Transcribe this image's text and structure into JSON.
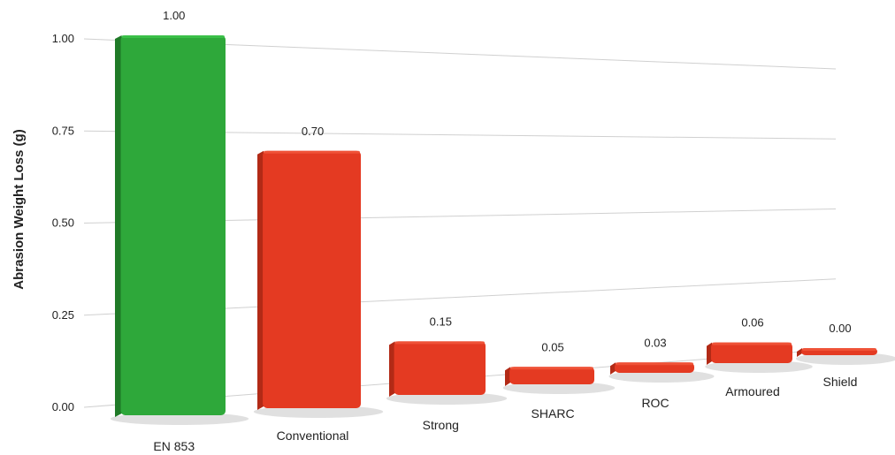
{
  "chart_data": {
    "type": "bar",
    "title": "",
    "xlabel": "",
    "ylabel": "Abrasion Weight Loss (g)",
    "ylim": [
      0,
      1
    ],
    "yticks": [
      "0.00",
      "0.25",
      "0.50",
      "0.75",
      "1.00"
    ],
    "grid": true,
    "categories": [
      "EN 853",
      "Conventional",
      "Strong",
      "SHARC",
      "ROC",
      "Armoured",
      "Shield"
    ],
    "values": [
      1.0,
      0.7,
      0.15,
      0.05,
      0.03,
      0.06,
      0.0
    ],
    "value_labels": [
      "1.00",
      "0.70",
      "0.15",
      "0.05",
      "0.03",
      "0.06",
      "0.00"
    ],
    "colors": {
      "highlight": "#2ea83a",
      "highlight_side": "#1f7a27",
      "highlight_top": "#3cc24a",
      "default": "#e43a22",
      "default_side": "#b22a16",
      "default_top": "#f0553a",
      "grid": "#d0d0d0"
    },
    "highlight_category": "EN 853"
  }
}
